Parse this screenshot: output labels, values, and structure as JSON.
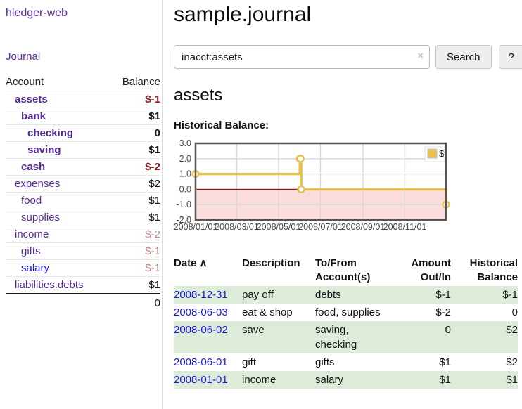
{
  "app": {
    "title": "hledger-web",
    "nav_journal": "Journal"
  },
  "sidebar": {
    "table": {
      "account_header": "Account",
      "balance_header": "Balance",
      "rows": [
        {
          "name": "assets",
          "indent": 1,
          "balance": "$-1",
          "bold": true,
          "balance_style": "neg"
        },
        {
          "name": "bank",
          "indent": 2,
          "balance": "$1",
          "bold": true,
          "balance_style": "normal"
        },
        {
          "name": "checking",
          "indent": 3,
          "balance": "0",
          "bold": true,
          "balance_style": "normal"
        },
        {
          "name": "saving",
          "indent": 3,
          "balance": "$1",
          "bold": true,
          "balance_style": "normal"
        },
        {
          "name": "cash",
          "indent": 2,
          "balance": "$-2",
          "bold": true,
          "balance_style": "neg"
        },
        {
          "name": "expenses",
          "indent": 1,
          "balance": "$2",
          "bold": false,
          "balance_style": "normal"
        },
        {
          "name": "food",
          "indent": 2,
          "balance": "$1",
          "bold": false,
          "balance_style": "normal"
        },
        {
          "name": "supplies",
          "indent": 2,
          "balance": "$1",
          "bold": false,
          "balance_style": "normal"
        },
        {
          "name": "income",
          "indent": 1,
          "balance": "$-2",
          "bold": false,
          "balance_style": "neg-soft"
        },
        {
          "name": "gifts",
          "indent": 2,
          "balance": "$-1",
          "bold": false,
          "balance_style": "neg-soft"
        },
        {
          "name": "salary",
          "indent": 2,
          "balance": "$-1",
          "bold": false,
          "balance_style": "neg-soft",
          "link_color": "blue"
        },
        {
          "name": "liabilities:debts",
          "indent": 1,
          "balance": "$1",
          "bold": false,
          "balance_style": "normal"
        }
      ],
      "total": "0"
    }
  },
  "header": {
    "title": "sample.journal"
  },
  "search": {
    "value": "inacct:assets",
    "clear_icon": "×",
    "button": "Search",
    "help_button": "?"
  },
  "account_page": {
    "heading": "assets",
    "chart_title": "Historical Balance:"
  },
  "chart_data": {
    "type": "line",
    "title": "Historical Balance:",
    "legend": [
      {
        "label": "$"
      }
    ],
    "legend_position": "top-right",
    "grid": true,
    "ylim": [
      -2,
      3
    ],
    "y_ticks": [
      3.0,
      2.0,
      1.0,
      0.0,
      -1.0,
      -2.0
    ],
    "y_tick_labels": [
      "3.0",
      "2.0",
      "1.0",
      "0.0",
      "-1.0",
      "-2.0"
    ],
    "x_ticks": [
      "2008/01/01",
      "2008/03/01",
      "2008/05/01",
      "2008/07/01",
      "2008/09/01",
      "2008/11/01"
    ],
    "x_tick_days": [
      0,
      60,
      121,
      182,
      244,
      305
    ],
    "x_range_days": [
      0,
      365
    ],
    "series": [
      {
        "name": "$",
        "step": true,
        "points": [
          {
            "date": "2008-01-01",
            "day": 0,
            "value": 1
          },
          {
            "date": "2008-06-01",
            "day": 152,
            "value": 2
          },
          {
            "date": "2008-06-02",
            "day": 153,
            "value": 2
          },
          {
            "date": "2008-06-03",
            "day": 154,
            "value": 0
          },
          {
            "date": "2008-12-31",
            "day": 365,
            "value": -1
          }
        ]
      }
    ],
    "colors": {
      "line": "#e6c14d",
      "marker_fill": "#ffffff",
      "negative_region_fill": "#fbdcdc",
      "zero_line": "#9c1a1a",
      "grid_line": "#d7d7d7",
      "border": "#545454",
      "tick_label": "#474747",
      "legend_box_border": "#e2e2e2",
      "legend_swatch_border": "#c6c6c6"
    }
  },
  "register": {
    "columns": [
      {
        "label": "Date",
        "sorted": true
      },
      {
        "label": "Description"
      },
      {
        "label": "To/From Account(s)"
      },
      {
        "label": "Amount Out/In",
        "align": "right"
      },
      {
        "label": "Historical Balance",
        "align": "right"
      }
    ],
    "sort_icon": "∧",
    "rows": [
      {
        "date": "2008-12-31",
        "description": "pay off",
        "accounts": "debts",
        "amount": "$-1",
        "amount_neg": true,
        "balance": "$-1",
        "balance_neg": true
      },
      {
        "date": "2008-06-03",
        "description": "eat & shop",
        "accounts": "food, supplies",
        "amount": "$-2",
        "amount_neg": true,
        "balance": "0",
        "balance_neg": false
      },
      {
        "date": "2008-06-02",
        "description": "save",
        "accounts": "saving, checking",
        "amount": "0",
        "amount_neg": false,
        "balance": "$2",
        "balance_neg": false
      },
      {
        "date": "2008-06-01",
        "description": "gift",
        "accounts": "gifts",
        "amount": "$1",
        "amount_neg": false,
        "balance": "$2",
        "balance_neg": false
      },
      {
        "date": "2008-01-01",
        "description": "income",
        "accounts": "salary",
        "amount": "$1",
        "amount_neg": false,
        "balance": "$1",
        "balance_neg": false
      }
    ]
  }
}
